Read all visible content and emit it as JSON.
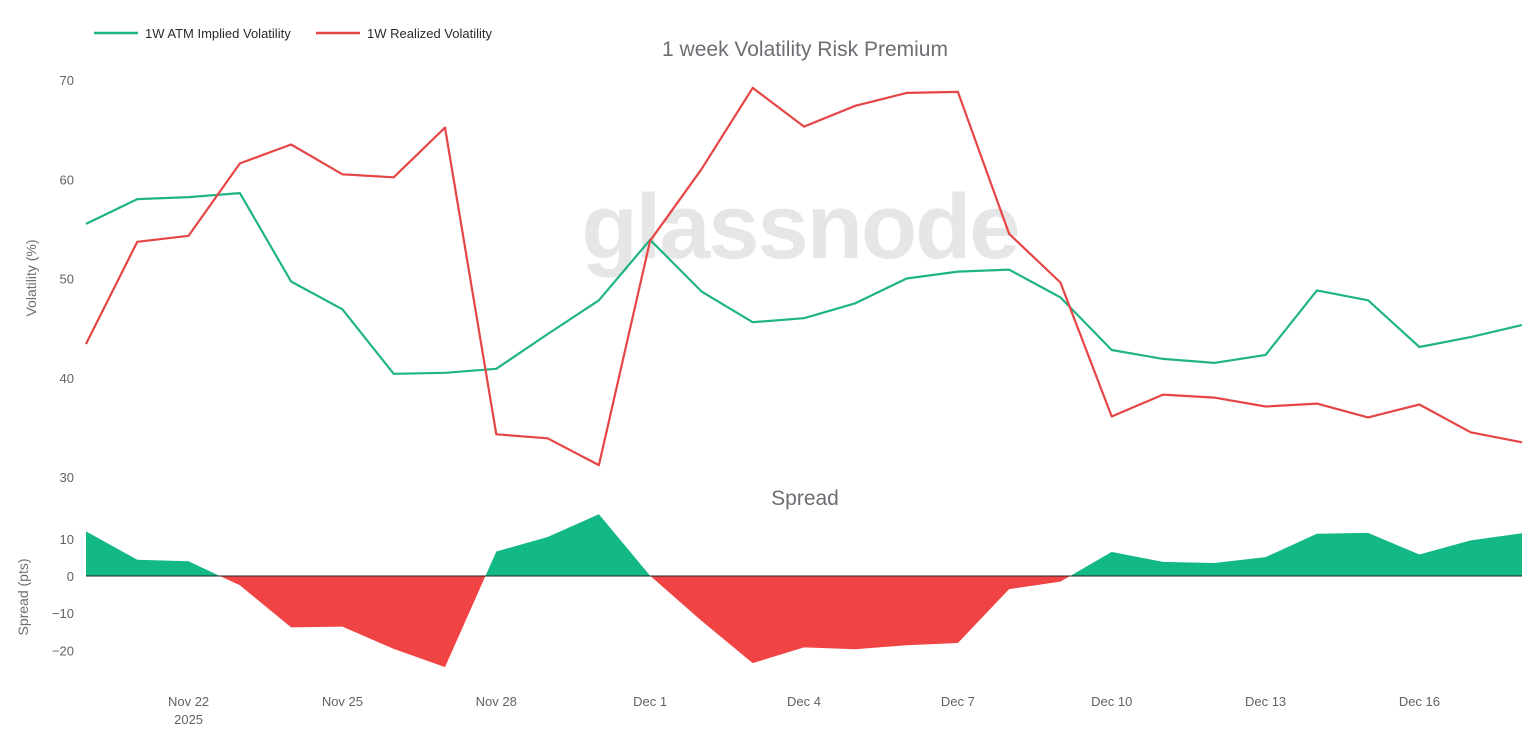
{
  "watermark": "glassnode",
  "colors": {
    "implied": "#1fb582",
    "realized": "#e64545",
    "spread_pos": "#12b886",
    "spread_neg": "#f04444",
    "zero_line": "#222222"
  },
  "chart_data": [
    {
      "type": "line",
      "title": "1 week Volatility Risk Premium",
      "ylabel": "Volatility (%)",
      "ylim": [
        30,
        70
      ],
      "yticks": [
        30,
        40,
        50,
        60,
        70
      ],
      "legend": "top-left",
      "x": [
        "2025-11-20",
        "2025-11-21",
        "2025-11-22",
        "2025-11-23",
        "2025-11-24",
        "2025-11-25",
        "2025-11-26",
        "2025-11-27",
        "2025-11-28",
        "2025-11-29",
        "2025-11-30",
        "2025-12-01",
        "2025-12-02",
        "2025-12-03",
        "2025-12-04",
        "2025-12-05",
        "2025-12-06",
        "2025-12-07",
        "2025-12-08",
        "2025-12-09",
        "2025-12-10",
        "2025-12-11",
        "2025-12-12",
        "2025-12-13",
        "2025-12-14",
        "2025-12-15",
        "2025-12-16",
        "2025-12-17",
        "2025-12-18"
      ],
      "series": [
        {
          "name": "1W ATM Implied Volatility",
          "values": [
            55.5,
            58.0,
            58.2,
            58.6,
            49.7,
            46.9,
            40.4,
            40.5,
            40.9,
            44.4,
            47.8,
            53.9,
            48.7,
            45.6,
            46.0,
            47.5,
            50.0,
            50.7,
            50.9,
            48.1,
            42.8,
            41.9,
            41.5,
            42.3,
            48.8,
            47.8,
            43.1,
            44.1,
            45.3
          ]
        },
        {
          "name": "1W Realized Volatility",
          "values": [
            43.4,
            53.7,
            54.3,
            61.6,
            63.5,
            60.5,
            60.2,
            65.2,
            34.3,
            33.9,
            31.2,
            53.8,
            61.0,
            69.2,
            65.3,
            67.4,
            68.7,
            68.8,
            54.5,
            49.6,
            36.1,
            38.3,
            38.0,
            37.1,
            37.4,
            36.0,
            37.3,
            34.5,
            33.5
          ]
        }
      ]
    },
    {
      "type": "area",
      "title": "Spread",
      "ylabel": "Spread (pts)",
      "ylim": [
        -25,
        14
      ],
      "yticks": [
        -20,
        -10,
        0,
        10
      ],
      "xticks": [
        {
          "date": "2025-11-22",
          "label": "Nov 22",
          "sublabel": "2025"
        },
        {
          "date": "2025-11-25",
          "label": "Nov 25"
        },
        {
          "date": "2025-11-28",
          "label": "Nov 28"
        },
        {
          "date": "2025-12-01",
          "label": "Dec 1"
        },
        {
          "date": "2025-12-04",
          "label": "Dec 4"
        },
        {
          "date": "2025-12-07",
          "label": "Dec 7"
        },
        {
          "date": "2025-12-10",
          "label": "Dec 10"
        },
        {
          "date": "2025-12-13",
          "label": "Dec 13"
        },
        {
          "date": "2025-12-16",
          "label": "Dec 16"
        }
      ],
      "x": [
        "2025-11-20",
        "2025-11-21",
        "2025-11-22",
        "2025-11-23",
        "2025-11-24",
        "2025-11-25",
        "2025-11-26",
        "2025-11-27",
        "2025-11-28",
        "2025-11-29",
        "2025-11-30",
        "2025-12-01",
        "2025-12-02",
        "2025-12-03",
        "2025-12-04",
        "2025-12-05",
        "2025-12-06",
        "2025-12-07",
        "2025-12-08",
        "2025-12-09",
        "2025-12-10",
        "2025-12-11",
        "2025-12-12",
        "2025-12-13",
        "2025-12-14",
        "2025-12-15",
        "2025-12-16",
        "2025-12-17",
        "2025-12-18"
      ],
      "values": [
        12.0,
        4.4,
        4.0,
        -2.5,
        -13.8,
        -13.6,
        -19.6,
        -24.5,
        6.6,
        10.5,
        16.6,
        0.1,
        -12.0,
        -23.4,
        -19.2,
        -19.7,
        -18.6,
        -18.0,
        -3.5,
        -1.5,
        6.5,
        3.8,
        3.5,
        5.1,
        11.4,
        11.6,
        5.8,
        9.6,
        11.5
      ]
    }
  ]
}
